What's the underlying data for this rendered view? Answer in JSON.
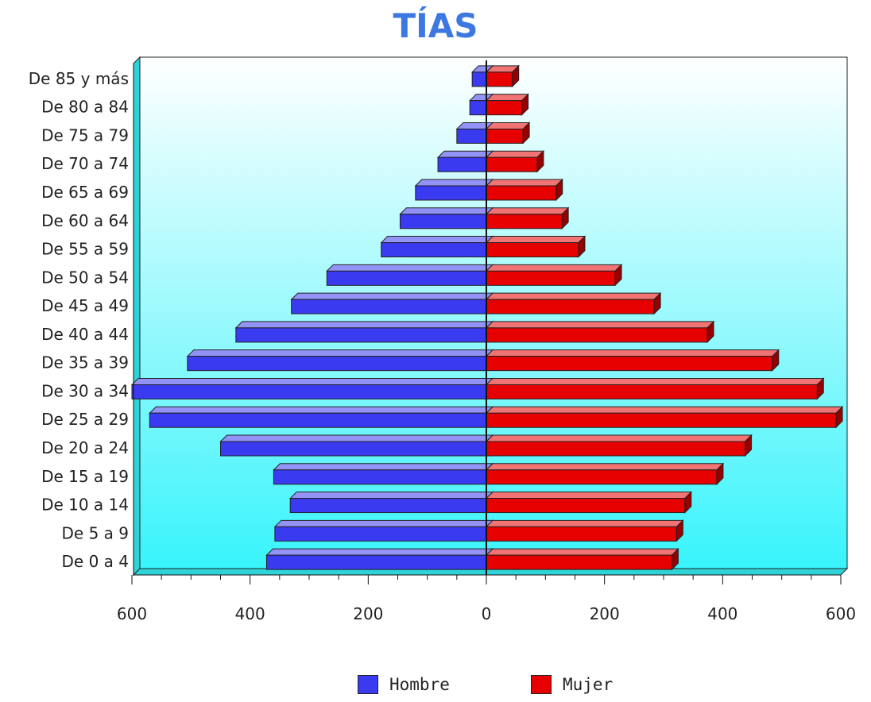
{
  "chart_data": {
    "type": "bar",
    "title": "TÍAS",
    "orientation": "horizontal-population-pyramid",
    "categories": [
      "De 0 a 4",
      "De 5 a 9",
      "De 10 a 14",
      "De 15 a 19",
      "De 20 a 24",
      "De 25 a 29",
      "De 30 a 34",
      "De 35 a 39",
      "De 40 a 44",
      "De 45 a 49",
      "De 50 a 54",
      "De 55 a 59",
      "De 60 a 64",
      "De 65 a 69",
      "De 70 a 74",
      "De 75 a 79",
      "De 80 a 84",
      "De 85 y más"
    ],
    "series": [
      {
        "name": "Hombre",
        "color": "#3a3af0",
        "values": [
          372,
          358,
          332,
          360,
          450,
          570,
          600,
          506,
          424,
          330,
          270,
          178,
          146,
          120,
          82,
          50,
          28,
          24
        ]
      },
      {
        "name": "Mujer",
        "color": "#e60000",
        "values": [
          314,
          322,
          336,
          390,
          438,
          592,
          560,
          484,
          374,
          284,
          218,
          156,
          128,
          118,
          86,
          62,
          60,
          44
        ]
      }
    ],
    "xlim": [
      -600,
      600
    ],
    "x_ticks": [
      -600,
      -400,
      -200,
      0,
      200,
      400,
      600
    ],
    "x_tick_labels": [
      "600",
      "400",
      "200",
      "0",
      "200",
      "400",
      "600"
    ],
    "xlabel": "",
    "ylabel": "",
    "legend_position": "bottom",
    "grid": false
  }
}
